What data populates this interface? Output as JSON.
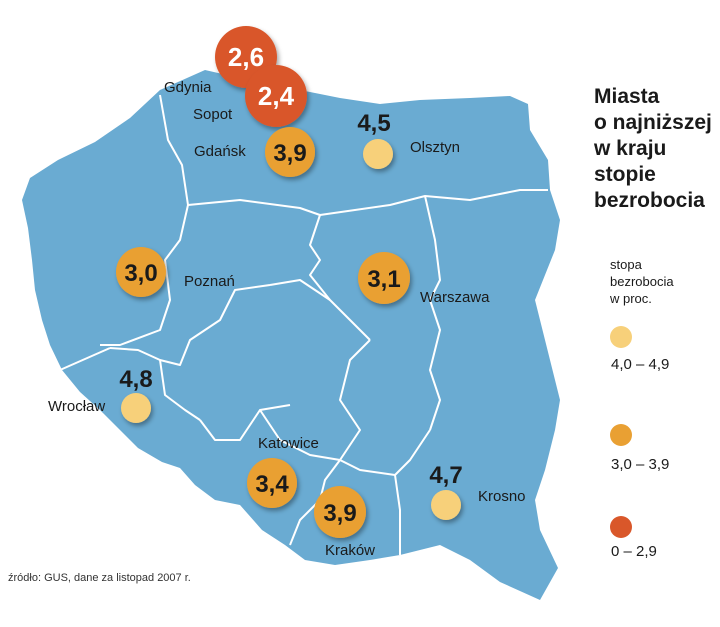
{
  "title_lines": [
    "Miasta",
    "o najniższej",
    "w kraju",
    "stopie",
    "bezrobocia"
  ],
  "legend": {
    "title_lines": [
      "stopa",
      "bezrobocia",
      "w proc."
    ],
    "items": [
      {
        "range": "4,0 – 4,9",
        "color": "#f7d07a"
      },
      {
        "range": "3,0 – 3,9",
        "color": "#e9a033"
      },
      {
        "range": "0 – 2,9",
        "color": "#d9572a"
      }
    ]
  },
  "source": "źródło: GUS, dane za listopad 2007 r.",
  "colors": {
    "map_fill": "#6aabd2",
    "borders": "#ffffff"
  },
  "cities": [
    {
      "name": "Gdynia",
      "value": "2,6",
      "unemployment_pct": 2.6,
      "category": "0 – 2,9"
    },
    {
      "name": "Sopot",
      "value": "2,4",
      "unemployment_pct": 2.4,
      "category": "0 – 2,9"
    },
    {
      "name": "Gdańsk",
      "value": "3,9",
      "unemployment_pct": 3.9,
      "category": "3,0 – 3,9"
    },
    {
      "name": "Olsztyn",
      "value": "4,5",
      "unemployment_pct": 4.5,
      "category": "4,0 – 4,9"
    },
    {
      "name": "Poznań",
      "value": "3,0",
      "unemployment_pct": 3.0,
      "category": "3,0 – 3,9"
    },
    {
      "name": "Warszawa",
      "value": "3,1",
      "unemployment_pct": 3.1,
      "category": "3,0 – 3,9"
    },
    {
      "name": "Wrocław",
      "value": "4,8",
      "unemployment_pct": 4.8,
      "category": "4,0 – 4,9"
    },
    {
      "name": "Katowice",
      "value": "3,4",
      "unemployment_pct": 3.4,
      "category": "3,0 – 3,9"
    },
    {
      "name": "Kraków",
      "value": "3,9",
      "unemployment_pct": 3.9,
      "category": "3,0 – 3,9"
    },
    {
      "name": "Krosno",
      "value": "4,7",
      "unemployment_pct": 4.7,
      "category": "4,0 – 4,9"
    }
  ]
}
